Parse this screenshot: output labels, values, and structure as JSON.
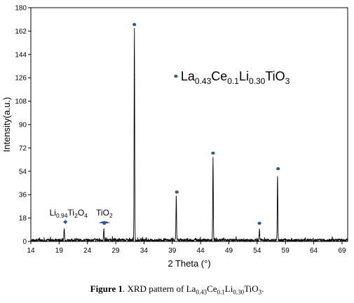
{
  "chart_data": {
    "type": "line",
    "xlabel": "2 Theta (°)",
    "ylabel": "Intensity(a.u.)",
    "xlim": [
      14,
      70
    ],
    "ylim": [
      0,
      180
    ],
    "x_ticks": [
      "14",
      "19",
      "24",
      "29",
      "34",
      "39",
      "44",
      "49",
      "54",
      "59",
      "64",
      "69"
    ],
    "y_ticks": [
      "0",
      "18",
      "36",
      "54",
      "72",
      "90",
      "108",
      "126",
      "144",
      "162",
      "180"
    ],
    "grid": false,
    "legend": "none",
    "line_color": "#000000",
    "marker_color": "#2e5a8c",
    "noise_level": 2,
    "peaks": [
      {
        "x": 19.9,
        "y": 9
      },
      {
        "x": 26.9,
        "y": 9
      },
      {
        "x": 32.3,
        "y": 164
      },
      {
        "x": 39.7,
        "y": 34
      },
      {
        "x": 46.2,
        "y": 64
      },
      {
        "x": 54.4,
        "y": 8
      },
      {
        "x": 57.6,
        "y": 51
      }
    ],
    "markers": [
      {
        "x": 32.3,
        "y": 167
      },
      {
        "x": 39.8,
        "y": 38
      },
      {
        "x": 46.2,
        "y": 68
      },
      {
        "x": 54.4,
        "y": 14
      },
      {
        "x": 57.7,
        "y": 56
      },
      {
        "x": 27.0,
        "y": 14
      }
    ],
    "annotations": [
      {
        "name": "main-phase-label",
        "base": "La",
        "sub1": "0.43",
        "mid1": "Ce",
        "sub2": "0.1",
        "mid2": "Li",
        "sub3": "0.30",
        "mid3": "TiO",
        "sub4": "3",
        "x": 40.5,
        "y": 124
      },
      {
        "name": "li-titanate-label",
        "base": "Li",
        "sub1": "0.94",
        "mid1": "Ti",
        "sub2": "2",
        "mid2": "O",
        "sub3": "4",
        "x": 17.3,
        "y": 20
      },
      {
        "name": "tio2-label",
        "base": "TiO",
        "sub1": "2",
        "x": 27.0,
        "y": 20
      }
    ]
  },
  "caption": {
    "label": "Figure 1",
    "text_before": ". XRD pattern of La",
    "s1": "0.43",
    "t1": "Ce",
    "s2": "0.1",
    "t2": "Li",
    "s3": "0.30",
    "t3": "TiO",
    "s4": "3",
    "t4": "."
  }
}
